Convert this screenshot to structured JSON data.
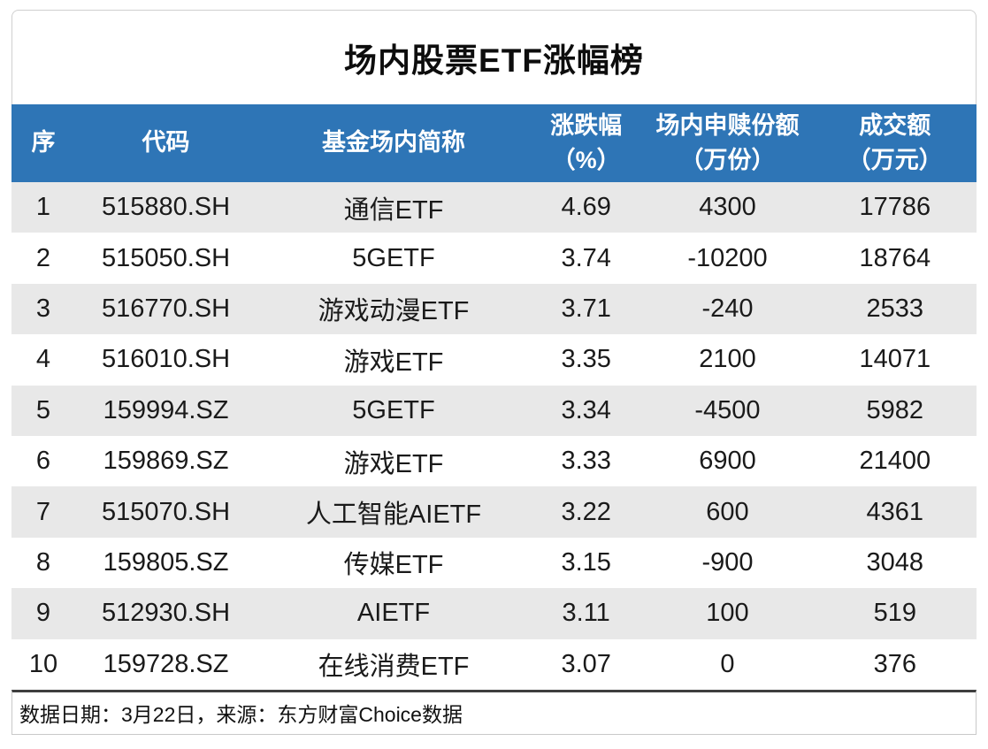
{
  "title": "场内股票ETF涨幅榜",
  "colors": {
    "header_bg": "#2e75b6",
    "header_text": "#ffffff",
    "stripe_bg": "#e8e8e8",
    "footer_rule": "#3f3f3f"
  },
  "table": {
    "columns": [
      {
        "label": "序",
        "unit": ""
      },
      {
        "label": "代码",
        "unit": ""
      },
      {
        "label": "基金场内简称",
        "unit": ""
      },
      {
        "label": "涨跌幅",
        "unit": "（%）"
      },
      {
        "label": "场内申赎份额",
        "unit": "（万份）"
      },
      {
        "label": "成交额",
        "unit": "（万元）"
      }
    ],
    "rows": [
      {
        "seq": "1",
        "code": "515880.SH",
        "name": "通信ETF",
        "change_pct": "4.69",
        "shares_10k": "4300",
        "turnover_10k": "17786"
      },
      {
        "seq": "2",
        "code": "515050.SH",
        "name": "5GETF",
        "change_pct": "3.74",
        "shares_10k": "-10200",
        "turnover_10k": "18764"
      },
      {
        "seq": "3",
        "code": "516770.SH",
        "name": "游戏动漫ETF",
        "change_pct": "3.71",
        "shares_10k": "-240",
        "turnover_10k": "2533"
      },
      {
        "seq": "4",
        "code": "516010.SH",
        "name": "游戏ETF",
        "change_pct": "3.35",
        "shares_10k": "2100",
        "turnover_10k": "14071"
      },
      {
        "seq": "5",
        "code": "159994.SZ",
        "name": "5GETF",
        "change_pct": "3.34",
        "shares_10k": "-4500",
        "turnover_10k": "5982"
      },
      {
        "seq": "6",
        "code": "159869.SZ",
        "name": "游戏ETF",
        "change_pct": "3.33",
        "shares_10k": "6900",
        "turnover_10k": "21400"
      },
      {
        "seq": "7",
        "code": "515070.SH",
        "name": "人工智能AIETF",
        "change_pct": "3.22",
        "shares_10k": "600",
        "turnover_10k": "4361"
      },
      {
        "seq": "8",
        "code": "159805.SZ",
        "name": "传媒ETF",
        "change_pct": "3.15",
        "shares_10k": "-900",
        "turnover_10k": "3048"
      },
      {
        "seq": "9",
        "code": "512930.SH",
        "name": "AIETF",
        "change_pct": "3.11",
        "shares_10k": "100",
        "turnover_10k": "519"
      },
      {
        "seq": "10",
        "code": "159728.SZ",
        "name": "在线消费ETF",
        "change_pct": "3.07",
        "shares_10k": "0",
        "turnover_10k": "376"
      }
    ]
  },
  "footer": {
    "note": "数据日期：3月22日，来源：东方财富Choice数据"
  }
}
